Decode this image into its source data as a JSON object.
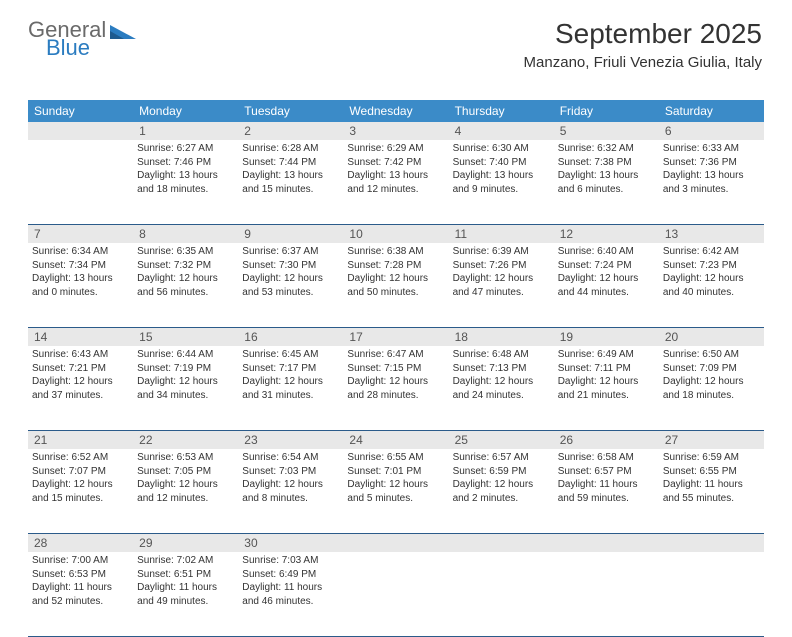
{
  "brand": {
    "top": "General",
    "bottom": "Blue"
  },
  "title": "September 2025",
  "location": "Manzano, Friuli Venezia Giulia, Italy",
  "colors": {
    "header_bg": "#3b8bc8",
    "header_text": "#ffffff",
    "daynum_bg": "#e8e8e8",
    "row_divider": "#2b5b8a",
    "text": "#333333",
    "brand_gray": "#6a6a6a",
    "brand_blue": "#2b7cc0"
  },
  "day_names": [
    "Sunday",
    "Monday",
    "Tuesday",
    "Wednesday",
    "Thursday",
    "Friday",
    "Saturday"
  ],
  "weeks": [
    {
      "nums": [
        "",
        "1",
        "2",
        "3",
        "4",
        "5",
        "6"
      ],
      "cells": [
        {
          "sunrise": "",
          "sunset": "",
          "daylight1": "",
          "daylight2": ""
        },
        {
          "sunrise": "Sunrise: 6:27 AM",
          "sunset": "Sunset: 7:46 PM",
          "daylight1": "Daylight: 13 hours",
          "daylight2": "and 18 minutes."
        },
        {
          "sunrise": "Sunrise: 6:28 AM",
          "sunset": "Sunset: 7:44 PM",
          "daylight1": "Daylight: 13 hours",
          "daylight2": "and 15 minutes."
        },
        {
          "sunrise": "Sunrise: 6:29 AM",
          "sunset": "Sunset: 7:42 PM",
          "daylight1": "Daylight: 13 hours",
          "daylight2": "and 12 minutes."
        },
        {
          "sunrise": "Sunrise: 6:30 AM",
          "sunset": "Sunset: 7:40 PM",
          "daylight1": "Daylight: 13 hours",
          "daylight2": "and 9 minutes."
        },
        {
          "sunrise": "Sunrise: 6:32 AM",
          "sunset": "Sunset: 7:38 PM",
          "daylight1": "Daylight: 13 hours",
          "daylight2": "and 6 minutes."
        },
        {
          "sunrise": "Sunrise: 6:33 AM",
          "sunset": "Sunset: 7:36 PM",
          "daylight1": "Daylight: 13 hours",
          "daylight2": "and 3 minutes."
        }
      ]
    },
    {
      "nums": [
        "7",
        "8",
        "9",
        "10",
        "11",
        "12",
        "13"
      ],
      "cells": [
        {
          "sunrise": "Sunrise: 6:34 AM",
          "sunset": "Sunset: 7:34 PM",
          "daylight1": "Daylight: 13 hours",
          "daylight2": "and 0 minutes."
        },
        {
          "sunrise": "Sunrise: 6:35 AM",
          "sunset": "Sunset: 7:32 PM",
          "daylight1": "Daylight: 12 hours",
          "daylight2": "and 56 minutes."
        },
        {
          "sunrise": "Sunrise: 6:37 AM",
          "sunset": "Sunset: 7:30 PM",
          "daylight1": "Daylight: 12 hours",
          "daylight2": "and 53 minutes."
        },
        {
          "sunrise": "Sunrise: 6:38 AM",
          "sunset": "Sunset: 7:28 PM",
          "daylight1": "Daylight: 12 hours",
          "daylight2": "and 50 minutes."
        },
        {
          "sunrise": "Sunrise: 6:39 AM",
          "sunset": "Sunset: 7:26 PM",
          "daylight1": "Daylight: 12 hours",
          "daylight2": "and 47 minutes."
        },
        {
          "sunrise": "Sunrise: 6:40 AM",
          "sunset": "Sunset: 7:24 PM",
          "daylight1": "Daylight: 12 hours",
          "daylight2": "and 44 minutes."
        },
        {
          "sunrise": "Sunrise: 6:42 AM",
          "sunset": "Sunset: 7:23 PM",
          "daylight1": "Daylight: 12 hours",
          "daylight2": "and 40 minutes."
        }
      ]
    },
    {
      "nums": [
        "14",
        "15",
        "16",
        "17",
        "18",
        "19",
        "20"
      ],
      "cells": [
        {
          "sunrise": "Sunrise: 6:43 AM",
          "sunset": "Sunset: 7:21 PM",
          "daylight1": "Daylight: 12 hours",
          "daylight2": "and 37 minutes."
        },
        {
          "sunrise": "Sunrise: 6:44 AM",
          "sunset": "Sunset: 7:19 PM",
          "daylight1": "Daylight: 12 hours",
          "daylight2": "and 34 minutes."
        },
        {
          "sunrise": "Sunrise: 6:45 AM",
          "sunset": "Sunset: 7:17 PM",
          "daylight1": "Daylight: 12 hours",
          "daylight2": "and 31 minutes."
        },
        {
          "sunrise": "Sunrise: 6:47 AM",
          "sunset": "Sunset: 7:15 PM",
          "daylight1": "Daylight: 12 hours",
          "daylight2": "and 28 minutes."
        },
        {
          "sunrise": "Sunrise: 6:48 AM",
          "sunset": "Sunset: 7:13 PM",
          "daylight1": "Daylight: 12 hours",
          "daylight2": "and 24 minutes."
        },
        {
          "sunrise": "Sunrise: 6:49 AM",
          "sunset": "Sunset: 7:11 PM",
          "daylight1": "Daylight: 12 hours",
          "daylight2": "and 21 minutes."
        },
        {
          "sunrise": "Sunrise: 6:50 AM",
          "sunset": "Sunset: 7:09 PM",
          "daylight1": "Daylight: 12 hours",
          "daylight2": "and 18 minutes."
        }
      ]
    },
    {
      "nums": [
        "21",
        "22",
        "23",
        "24",
        "25",
        "26",
        "27"
      ],
      "cells": [
        {
          "sunrise": "Sunrise: 6:52 AM",
          "sunset": "Sunset: 7:07 PM",
          "daylight1": "Daylight: 12 hours",
          "daylight2": "and 15 minutes."
        },
        {
          "sunrise": "Sunrise: 6:53 AM",
          "sunset": "Sunset: 7:05 PM",
          "daylight1": "Daylight: 12 hours",
          "daylight2": "and 12 minutes."
        },
        {
          "sunrise": "Sunrise: 6:54 AM",
          "sunset": "Sunset: 7:03 PM",
          "daylight1": "Daylight: 12 hours",
          "daylight2": "and 8 minutes."
        },
        {
          "sunrise": "Sunrise: 6:55 AM",
          "sunset": "Sunset: 7:01 PM",
          "daylight1": "Daylight: 12 hours",
          "daylight2": "and 5 minutes."
        },
        {
          "sunrise": "Sunrise: 6:57 AM",
          "sunset": "Sunset: 6:59 PM",
          "daylight1": "Daylight: 12 hours",
          "daylight2": "and 2 minutes."
        },
        {
          "sunrise": "Sunrise: 6:58 AM",
          "sunset": "Sunset: 6:57 PM",
          "daylight1": "Daylight: 11 hours",
          "daylight2": "and 59 minutes."
        },
        {
          "sunrise": "Sunrise: 6:59 AM",
          "sunset": "Sunset: 6:55 PM",
          "daylight1": "Daylight: 11 hours",
          "daylight2": "and 55 minutes."
        }
      ]
    },
    {
      "nums": [
        "28",
        "29",
        "30",
        "",
        "",
        "",
        ""
      ],
      "cells": [
        {
          "sunrise": "Sunrise: 7:00 AM",
          "sunset": "Sunset: 6:53 PM",
          "daylight1": "Daylight: 11 hours",
          "daylight2": "and 52 minutes."
        },
        {
          "sunrise": "Sunrise: 7:02 AM",
          "sunset": "Sunset: 6:51 PM",
          "daylight1": "Daylight: 11 hours",
          "daylight2": "and 49 minutes."
        },
        {
          "sunrise": "Sunrise: 7:03 AM",
          "sunset": "Sunset: 6:49 PM",
          "daylight1": "Daylight: 11 hours",
          "daylight2": "and 46 minutes."
        },
        {
          "sunrise": "",
          "sunset": "",
          "daylight1": "",
          "daylight2": ""
        },
        {
          "sunrise": "",
          "sunset": "",
          "daylight1": "",
          "daylight2": ""
        },
        {
          "sunrise": "",
          "sunset": "",
          "daylight1": "",
          "daylight2": ""
        },
        {
          "sunrise": "",
          "sunset": "",
          "daylight1": "",
          "daylight2": ""
        }
      ]
    }
  ]
}
